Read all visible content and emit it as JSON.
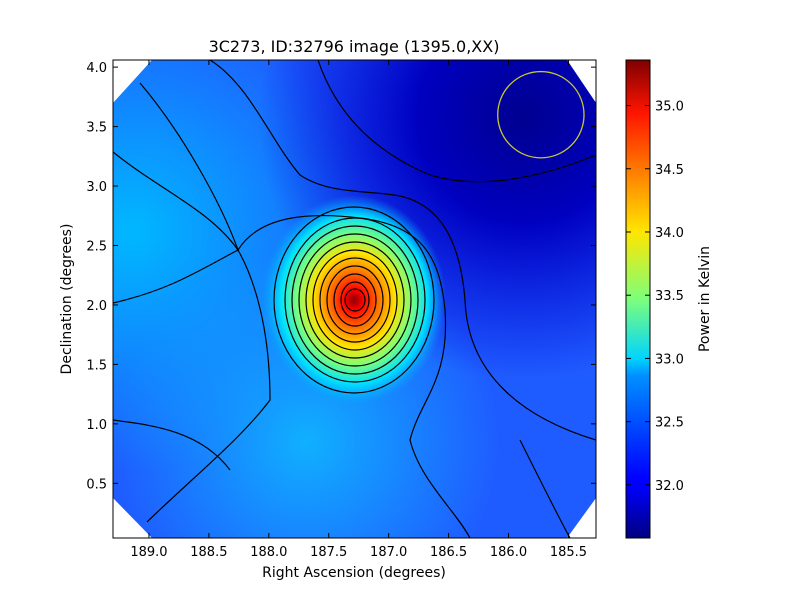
{
  "chart_data": {
    "type": "heatmap",
    "title": "3C273, ID:32796 image (1395.0,XX)",
    "xlabel": "Right Ascension (degrees)",
    "ylabel": "Declination (degrees)",
    "colorbar_label": "Power in Kelvin",
    "colormap": "jet",
    "xlim": [
      189.3,
      185.27
    ],
    "ylim": [
      0.04,
      4.06
    ],
    "clim": [
      31.58,
      35.36
    ],
    "x_ticks": [
      {
        "value": 189.0,
        "label": "189.0"
      },
      {
        "value": 188.5,
        "label": "188.5"
      },
      {
        "value": 188.0,
        "label": "188.0"
      },
      {
        "value": 187.5,
        "label": "187.5"
      },
      {
        "value": 187.0,
        "label": "187.0"
      },
      {
        "value": 186.5,
        "label": "186.5"
      },
      {
        "value": 186.0,
        "label": "186.0"
      },
      {
        "value": 185.5,
        "label": "185.5"
      }
    ],
    "y_ticks": [
      {
        "value": 0.5,
        "label": "0.5"
      },
      {
        "value": 1.0,
        "label": "1.0"
      },
      {
        "value": 1.5,
        "label": "1.5"
      },
      {
        "value": 2.0,
        "label": "2.0"
      },
      {
        "value": 2.5,
        "label": "2.5"
      },
      {
        "value": 3.0,
        "label": "3.0"
      },
      {
        "value": 3.5,
        "label": "3.5"
      },
      {
        "value": 4.0,
        "label": "4.0"
      }
    ],
    "colorbar_ticks": [
      {
        "value": 32.0,
        "label": "32.0"
      },
      {
        "value": 32.5,
        "label": "32.5"
      },
      {
        "value": 33.0,
        "label": "33.0"
      },
      {
        "value": 33.5,
        "label": "33.5"
      },
      {
        "value": 34.0,
        "label": "34.0"
      },
      {
        "value": 34.5,
        "label": "34.5"
      },
      {
        "value": 35.0,
        "label": "35.0"
      }
    ],
    "peak": {
      "ra": 187.27,
      "dec": 2.03,
      "value": 35.36
    },
    "background_min": {
      "ra": 185.9,
      "dec": 3.9,
      "value": 31.58
    },
    "beam_circle": {
      "ra": 185.73,
      "dec": 3.6,
      "radius_deg": 0.36,
      "color": "#c8c832"
    },
    "contour_color": "#000000"
  }
}
